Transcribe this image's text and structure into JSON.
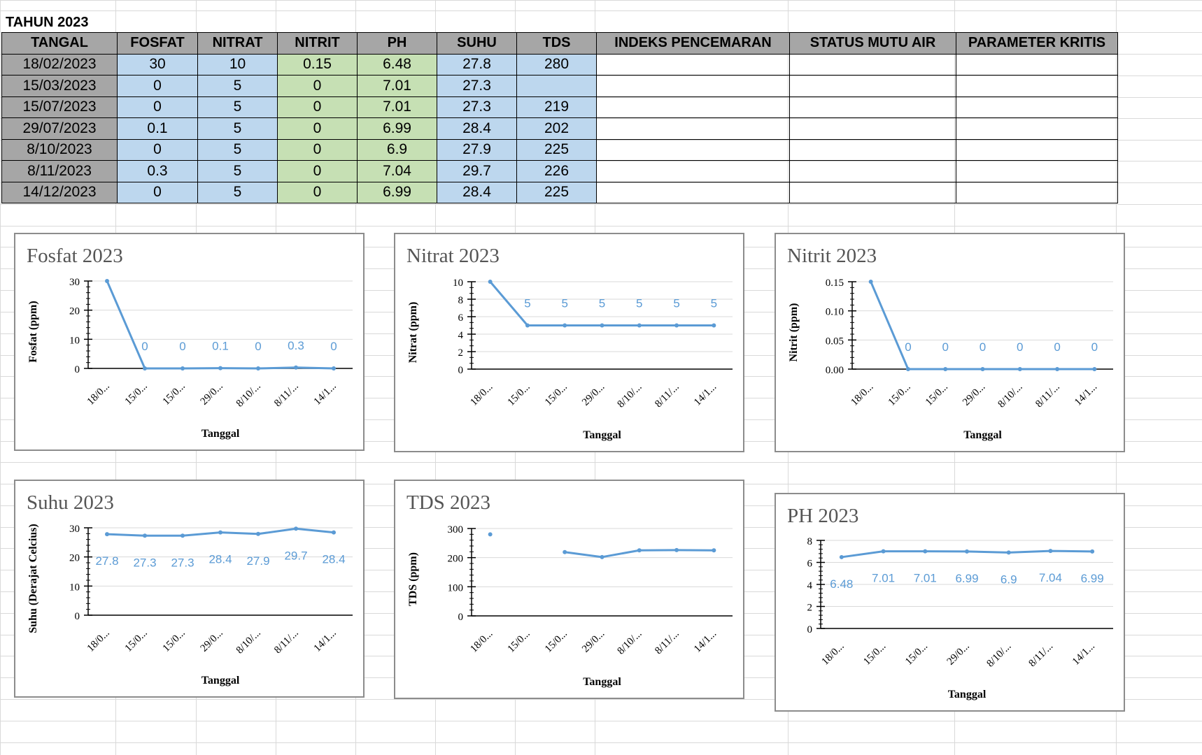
{
  "sheet": {
    "title": "TAHUN 2023",
    "headers": [
      "TANGAL",
      "FOSFAT",
      "NITRAT",
      "NITRIT",
      "PH",
      "SUHU",
      "TDS",
      "INDEKS PENCEMARAN",
      "STATUS MUTU AIR",
      "PARAMETER KRITIS"
    ],
    "rows": [
      [
        "18/02/2023",
        "30",
        "10",
        "0.15",
        "6.48",
        "27.8",
        "280",
        "",
        "",
        ""
      ],
      [
        "15/03/2023",
        "0",
        "5",
        "0",
        "7.01",
        "27.3",
        "",
        "",
        "",
        ""
      ],
      [
        "15/07/2023",
        "0",
        "5",
        "0",
        "7.01",
        "27.3",
        "219",
        "",
        "",
        ""
      ],
      [
        "29/07/2023",
        "0.1",
        "5",
        "0",
        "6.99",
        "28.4",
        "202",
        "",
        "",
        ""
      ],
      [
        "8/10/2023",
        "0",
        "5",
        "0",
        "6.9",
        "27.9",
        "225",
        "",
        "",
        ""
      ],
      [
        "8/11/2023",
        "0.3",
        "5",
        "0",
        "7.04",
        "29.7",
        "226",
        "",
        "",
        ""
      ],
      [
        "14/12/2023",
        "0",
        "5",
        "0",
        "6.99",
        "28.4",
        "225",
        "",
        "",
        ""
      ]
    ],
    "colors": {
      "header": "#a6a6a6",
      "date": "#a6a6a6",
      "blue": "#bdd7ee",
      "green": "#c6e0b4",
      "gridline": "#d9d9d9",
      "series": "#5b9bd5"
    }
  },
  "chart_data": [
    {
      "type": "line",
      "title": "Fosfat 2023",
      "xlabel": "Tanggal",
      "ylabel": "Fosfat (ppm)",
      "categories": [
        "18/0...",
        "15/0...",
        "15/0...",
        "29/0...",
        "8/10/...",
        "8/11/...",
        "14/1..."
      ],
      "values": [
        30,
        0,
        0,
        0.1,
        0,
        0.3,
        0
      ],
      "data_labels": [
        "",
        "0",
        "0",
        "0.1",
        "0",
        "0.3",
        "0"
      ],
      "ylim": [
        0,
        30
      ],
      "yticks": [
        "0",
        "10",
        "20",
        "30"
      ]
    },
    {
      "type": "line",
      "title": "Nitrat 2023",
      "xlabel": "Tanggal",
      "ylabel": "Nitrat (ppm)",
      "categories": [
        "18/0...",
        "15/0...",
        "15/0...",
        "29/0...",
        "8/10/...",
        "8/11/...",
        "14/1..."
      ],
      "values": [
        10,
        5,
        5,
        5,
        5,
        5,
        5
      ],
      "data_labels": [
        "",
        "5",
        "5",
        "5",
        "5",
        "5",
        "5"
      ],
      "ylim": [
        0,
        10
      ],
      "yticks": [
        "0",
        "2",
        "4",
        "6",
        "8",
        "10"
      ]
    },
    {
      "type": "line",
      "title": "Nitrit 2023",
      "xlabel": "Tanggal",
      "ylabel": "Nitrit (ppm)",
      "categories": [
        "18/0...",
        "15/0...",
        "15/0...",
        "29/0...",
        "8/10/...",
        "8/11/...",
        "14/1..."
      ],
      "values": [
        0.15,
        0,
        0,
        0,
        0,
        0,
        0
      ],
      "data_labels": [
        "",
        "0",
        "0",
        "0",
        "0",
        "0",
        "0"
      ],
      "ylim": [
        0,
        0.15
      ],
      "yticks": [
        "0.00",
        "0.05",
        "0.10",
        "0.15"
      ]
    },
    {
      "type": "line",
      "title": "Suhu 2023",
      "xlabel": "Tanggal",
      "ylabel": "Suhu (Derajat Celcius)",
      "categories": [
        "18/0...",
        "15/0...",
        "15/0...",
        "29/0...",
        "8/10/...",
        "8/11/...",
        "14/1..."
      ],
      "values": [
        27.8,
        27.3,
        27.3,
        28.4,
        27.9,
        29.7,
        28.4
      ],
      "data_labels": [
        "27.8",
        "27.3",
        "27.3",
        "28.4",
        "27.9",
        "29.7",
        "28.4"
      ],
      "ylim": [
        0,
        30
      ],
      "yticks": [
        "0",
        "10",
        "20",
        "30"
      ]
    },
    {
      "type": "line",
      "title": "TDS 2023",
      "xlabel": "Tanggal",
      "ylabel": "TDS (ppm)",
      "categories": [
        "18/0...",
        "15/0...",
        "15/0...",
        "29/0...",
        "8/10/...",
        "8/11/...",
        "14/1..."
      ],
      "values": [
        280,
        null,
        219,
        202,
        225,
        226,
        225
      ],
      "data_labels": [
        "",
        "",
        "",
        "",
        "",
        "",
        ""
      ],
      "ylim": [
        0,
        300
      ],
      "yticks": [
        "0",
        "100",
        "200",
        "300"
      ]
    },
    {
      "type": "line",
      "title": "PH 2023",
      "xlabel": "Tanggal",
      "ylabel": "",
      "categories": [
        "18/0...",
        "15/0...",
        "15/0...",
        "29/0...",
        "8/10/...",
        "8/11/...",
        "14/1..."
      ],
      "values": [
        6.48,
        7.01,
        7.01,
        6.99,
        6.9,
        7.04,
        6.99
      ],
      "data_labels": [
        "6.48",
        "7.01",
        "7.01",
        "6.99",
        "6.9",
        "7.04",
        "6.99"
      ],
      "ylim": [
        0,
        8
      ],
      "yticks": [
        "0",
        "2",
        "4",
        "6",
        "8"
      ]
    }
  ]
}
